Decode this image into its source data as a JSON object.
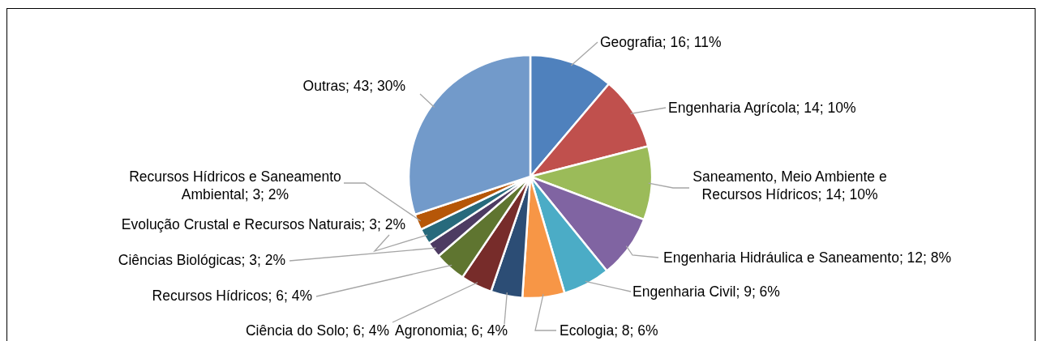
{
  "chart_data": {
    "type": "pie",
    "categories": [
      "Geografia",
      "Engenharia Agrícola",
      "Saneamento, Meio Ambiente e Recursos Hídricos",
      "Engenharia Hidráulica e Saneamento",
      "Engenharia Civil",
      "Ecologia",
      "Agronomia",
      "Ciência do Solo",
      "Recursos Hídricos",
      "Ciências Biológicas",
      "Evolução Crustal e Recursos Naturais",
      "Recursos Hídricos e Saneamento Ambiental",
      "Outras"
    ],
    "values": [
      16,
      14,
      14,
      12,
      9,
      8,
      6,
      6,
      6,
      3,
      3,
      3,
      43
    ],
    "value_labels": [
      "16; 11%",
      "14; 10%",
      "14; 10%",
      "12; 8%",
      "9; 6%",
      "8; 6%",
      "6; 4%",
      "6; 4%",
      "6; 4%",
      "3; 2%",
      "3; 2%",
      "3; 2%",
      "43; 30%"
    ],
    "colors": [
      "#4f81bd",
      "#c0504d",
      "#9bbb59",
      "#8064a2",
      "#4bacc6",
      "#f79646",
      "#2c4d75",
      "#772c2a",
      "#5f7530",
      "#4d3b62",
      "#276a7c",
      "#b65708",
      "#729aca"
    ]
  }
}
